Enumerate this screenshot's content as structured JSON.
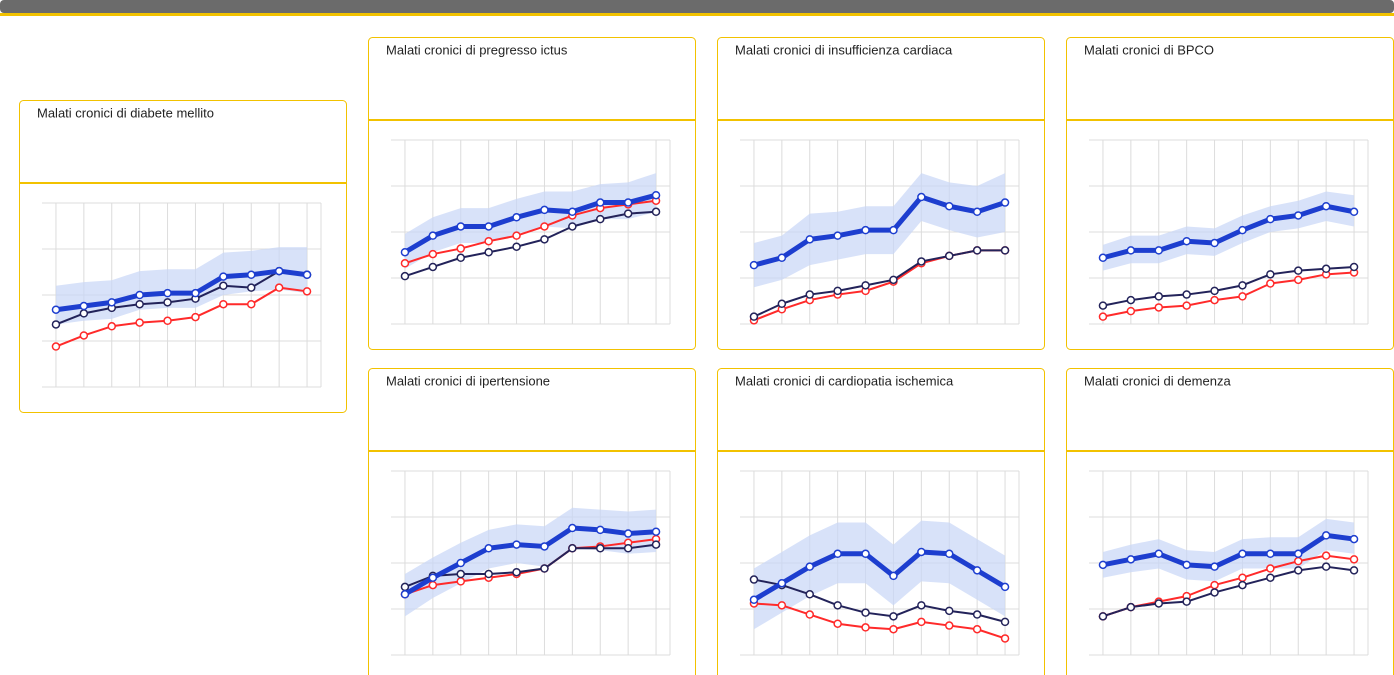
{
  "panels": [
    {
      "title": "Malati cronici di diabete mellito",
      "chart_data": {
        "type": "line",
        "categories": [
          null,
          null,
          null,
          null,
          null,
          null,
          null,
          null,
          null,
          null
        ],
        "ylim": [
          0,
          100
        ],
        "yticks": [
          0,
          25,
          50,
          75,
          100
        ],
        "grid": true,
        "band": {
          "color": "#c8d5f6",
          "upper": [
            55,
            57,
            58,
            63,
            64,
            64,
            73,
            74,
            76,
            76
          ],
          "lower": [
            34,
            36,
            37,
            42,
            43,
            43,
            50,
            52,
            53,
            51
          ]
        },
        "series": [
          {
            "color": "#1d3ecf",
            "values": [
              42,
              44,
              46,
              50,
              51,
              51,
              60,
              61,
              63,
              61
            ]
          },
          {
            "color": "#23235a",
            "values": [
              34,
              40,
              43,
              45,
              46,
              48,
              55,
              54,
              63,
              61
            ]
          },
          {
            "color": "#ff2a2a",
            "values": [
              22,
              28,
              33,
              35,
              36,
              38,
              45,
              45,
              54,
              52
            ]
          }
        ]
      }
    },
    {
      "title": "Malati cronici di pregresso ictus",
      "chart_data": {
        "type": "line",
        "categories": [
          null,
          null,
          null,
          null,
          null,
          null,
          null,
          null,
          null,
          null
        ],
        "ylim": [
          0,
          100
        ],
        "yticks": [
          0,
          25,
          50,
          75,
          100
        ],
        "grid": true,
        "band": {
          "color": "#c8d5f6",
          "upper": [
            49,
            58,
            63,
            63,
            68,
            72,
            72,
            76,
            77,
            82
          ],
          "lower": [
            30,
            39,
            44,
            44,
            49,
            53,
            52,
            57,
            57,
            61
          ]
        },
        "series": [
          {
            "color": "#1d3ecf",
            "values": [
              39,
              48,
              53,
              53,
              58,
              62,
              61,
              66,
              66,
              70
            ]
          },
          {
            "color": "#ff2a2a",
            "values": [
              33,
              38,
              41,
              45,
              48,
              53,
              59,
              63,
              65,
              67
            ]
          },
          {
            "color": "#23235a",
            "values": [
              26,
              31,
              36,
              39,
              42,
              46,
              53,
              57,
              60,
              61
            ]
          }
        ]
      }
    },
    {
      "title": "Malati cronici di insufficienza cardiaca",
      "chart_data": {
        "type": "line",
        "categories": [
          null,
          null,
          null,
          null,
          null,
          null,
          null,
          null,
          null,
          null
        ],
        "ylim": [
          0,
          100
        ],
        "yticks": [
          0,
          25,
          50,
          75,
          100
        ],
        "grid": true,
        "band": {
          "color": "#c8d5f6",
          "upper": [
            44,
            48,
            60,
            61,
            64,
            64,
            82,
            77,
            75,
            82
          ],
          "lower": [
            20,
            24,
            32,
            35,
            38,
            38,
            56,
            51,
            47,
            50
          ]
        },
        "series": [
          {
            "color": "#1d3ecf",
            "values": [
              32,
              36,
              46,
              48,
              51,
              51,
              69,
              64,
              61,
              66
            ]
          },
          {
            "color": "#23235a",
            "values": [
              4,
              11,
              16,
              18,
              21,
              24,
              34,
              37,
              40,
              40
            ]
          },
          {
            "color": "#ff2a2a",
            "values": [
              2,
              8,
              13,
              16,
              18,
              23,
              33,
              37,
              40,
              40
            ]
          }
        ]
      }
    },
    {
      "title": "Malati cronici di BPCO",
      "chart_data": {
        "type": "line",
        "categories": [
          null,
          null,
          null,
          null,
          null,
          null,
          null,
          null,
          null,
          null
        ],
        "ylim": [
          0,
          100
        ],
        "yticks": [
          0,
          25,
          50,
          75,
          100
        ],
        "grid": true,
        "band": {
          "color": "#c8d5f6",
          "upper": [
            43,
            48,
            48,
            53,
            52,
            59,
            64,
            67,
            72,
            70
          ],
          "lower": [
            29,
            33,
            33,
            38,
            37,
            44,
            50,
            52,
            56,
            53
          ]
        },
        "series": [
          {
            "color": "#1d3ecf",
            "values": [
              36,
              40,
              40,
              45,
              44,
              51,
              57,
              59,
              64,
              61
            ]
          },
          {
            "color": "#23235a",
            "values": [
              10,
              13,
              15,
              16,
              18,
              21,
              27,
              29,
              30,
              31
            ]
          },
          {
            "color": "#ff2a2a",
            "values": [
              4,
              7,
              9,
              10,
              13,
              15,
              22,
              24,
              27,
              28
            ]
          }
        ]
      }
    },
    {
      "title": "Malati cronici di ipertensione",
      "chart_data": {
        "type": "line",
        "categories": [
          null,
          null,
          null,
          null,
          null,
          null,
          null,
          null,
          null,
          null
        ],
        "ylim": [
          0,
          100
        ],
        "yticks": [
          0,
          25,
          50,
          75,
          100
        ],
        "grid": true,
        "band": {
          "color": "#c8d5f6",
          "upper": [
            44,
            53,
            61,
            68,
            71,
            70,
            80,
            79,
            78,
            79
          ],
          "lower": [
            21,
            31,
            39,
            47,
            50,
            48,
            58,
            57,
            55,
            56
          ]
        },
        "series": [
          {
            "color": "#1d3ecf",
            "values": [
              33,
              42,
              50,
              58,
              60,
              59,
              69,
              68,
              66,
              67
            ]
          },
          {
            "color": "#23235a",
            "values": [
              37,
              43,
              44,
              44,
              45,
              47,
              58,
              58,
              58,
              60
            ]
          },
          {
            "color": "#ff2a2a",
            "values": [
              33,
              38,
              40,
              42,
              44,
              47,
              58,
              59,
              61,
              63
            ]
          }
        ]
      }
    },
    {
      "title": "Malati cronici di cardiopatia ischemica",
      "chart_data": {
        "type": "line",
        "categories": [
          null,
          null,
          null,
          null,
          null,
          null,
          null,
          null,
          null,
          null
        ],
        "ylim": [
          0,
          100
        ],
        "yticks": [
          0,
          25,
          50,
          75,
          100
        ],
        "grid": true,
        "band": {
          "color": "#c8d5f6",
          "upper": [
            47,
            56,
            65,
            72,
            72,
            60,
            73,
            72,
            63,
            54
          ],
          "lower": [
            14,
            23,
            32,
            39,
            39,
            27,
            40,
            39,
            30,
            21
          ]
        },
        "series": [
          {
            "color": "#1d3ecf",
            "values": [
              30,
              39,
              48,
              55,
              55,
              43,
              56,
              55,
              46,
              37
            ]
          },
          {
            "color": "#23235a",
            "values": [
              41,
              38,
              33,
              27,
              23,
              21,
              27,
              24,
              22,
              18
            ]
          },
          {
            "color": "#ff2a2a",
            "values": [
              28,
              27,
              22,
              17,
              15,
              14,
              18,
              16,
              14,
              9
            ]
          }
        ]
      }
    },
    {
      "title": "Malati cronici di demenza",
      "chart_data": {
        "type": "line",
        "categories": [
          null,
          null,
          null,
          null,
          null,
          null,
          null,
          null,
          null,
          null
        ],
        "ylim": [
          0,
          100
        ],
        "yticks": [
          0,
          25,
          50,
          75,
          100
        ],
        "grid": true,
        "band": {
          "color": "#c8d5f6",
          "upper": [
            56,
            60,
            63,
            57,
            56,
            63,
            64,
            64,
            74,
            72
          ],
          "lower": [
            42,
            45,
            47,
            41,
            40,
            47,
            47,
            47,
            57,
            55
          ]
        },
        "series": [
          {
            "color": "#1d3ecf",
            "values": [
              49,
              52,
              55,
              49,
              48,
              55,
              55,
              55,
              65,
              63
            ]
          },
          {
            "color": "#23235a",
            "values": [
              21,
              26,
              28,
              29,
              34,
              38,
              42,
              46,
              48,
              46
            ]
          },
          {
            "color": "#ff2a2a",
            "values": [
              21,
              26,
              29,
              32,
              38,
              42,
              47,
              51,
              54,
              52
            ]
          }
        ]
      }
    }
  ]
}
